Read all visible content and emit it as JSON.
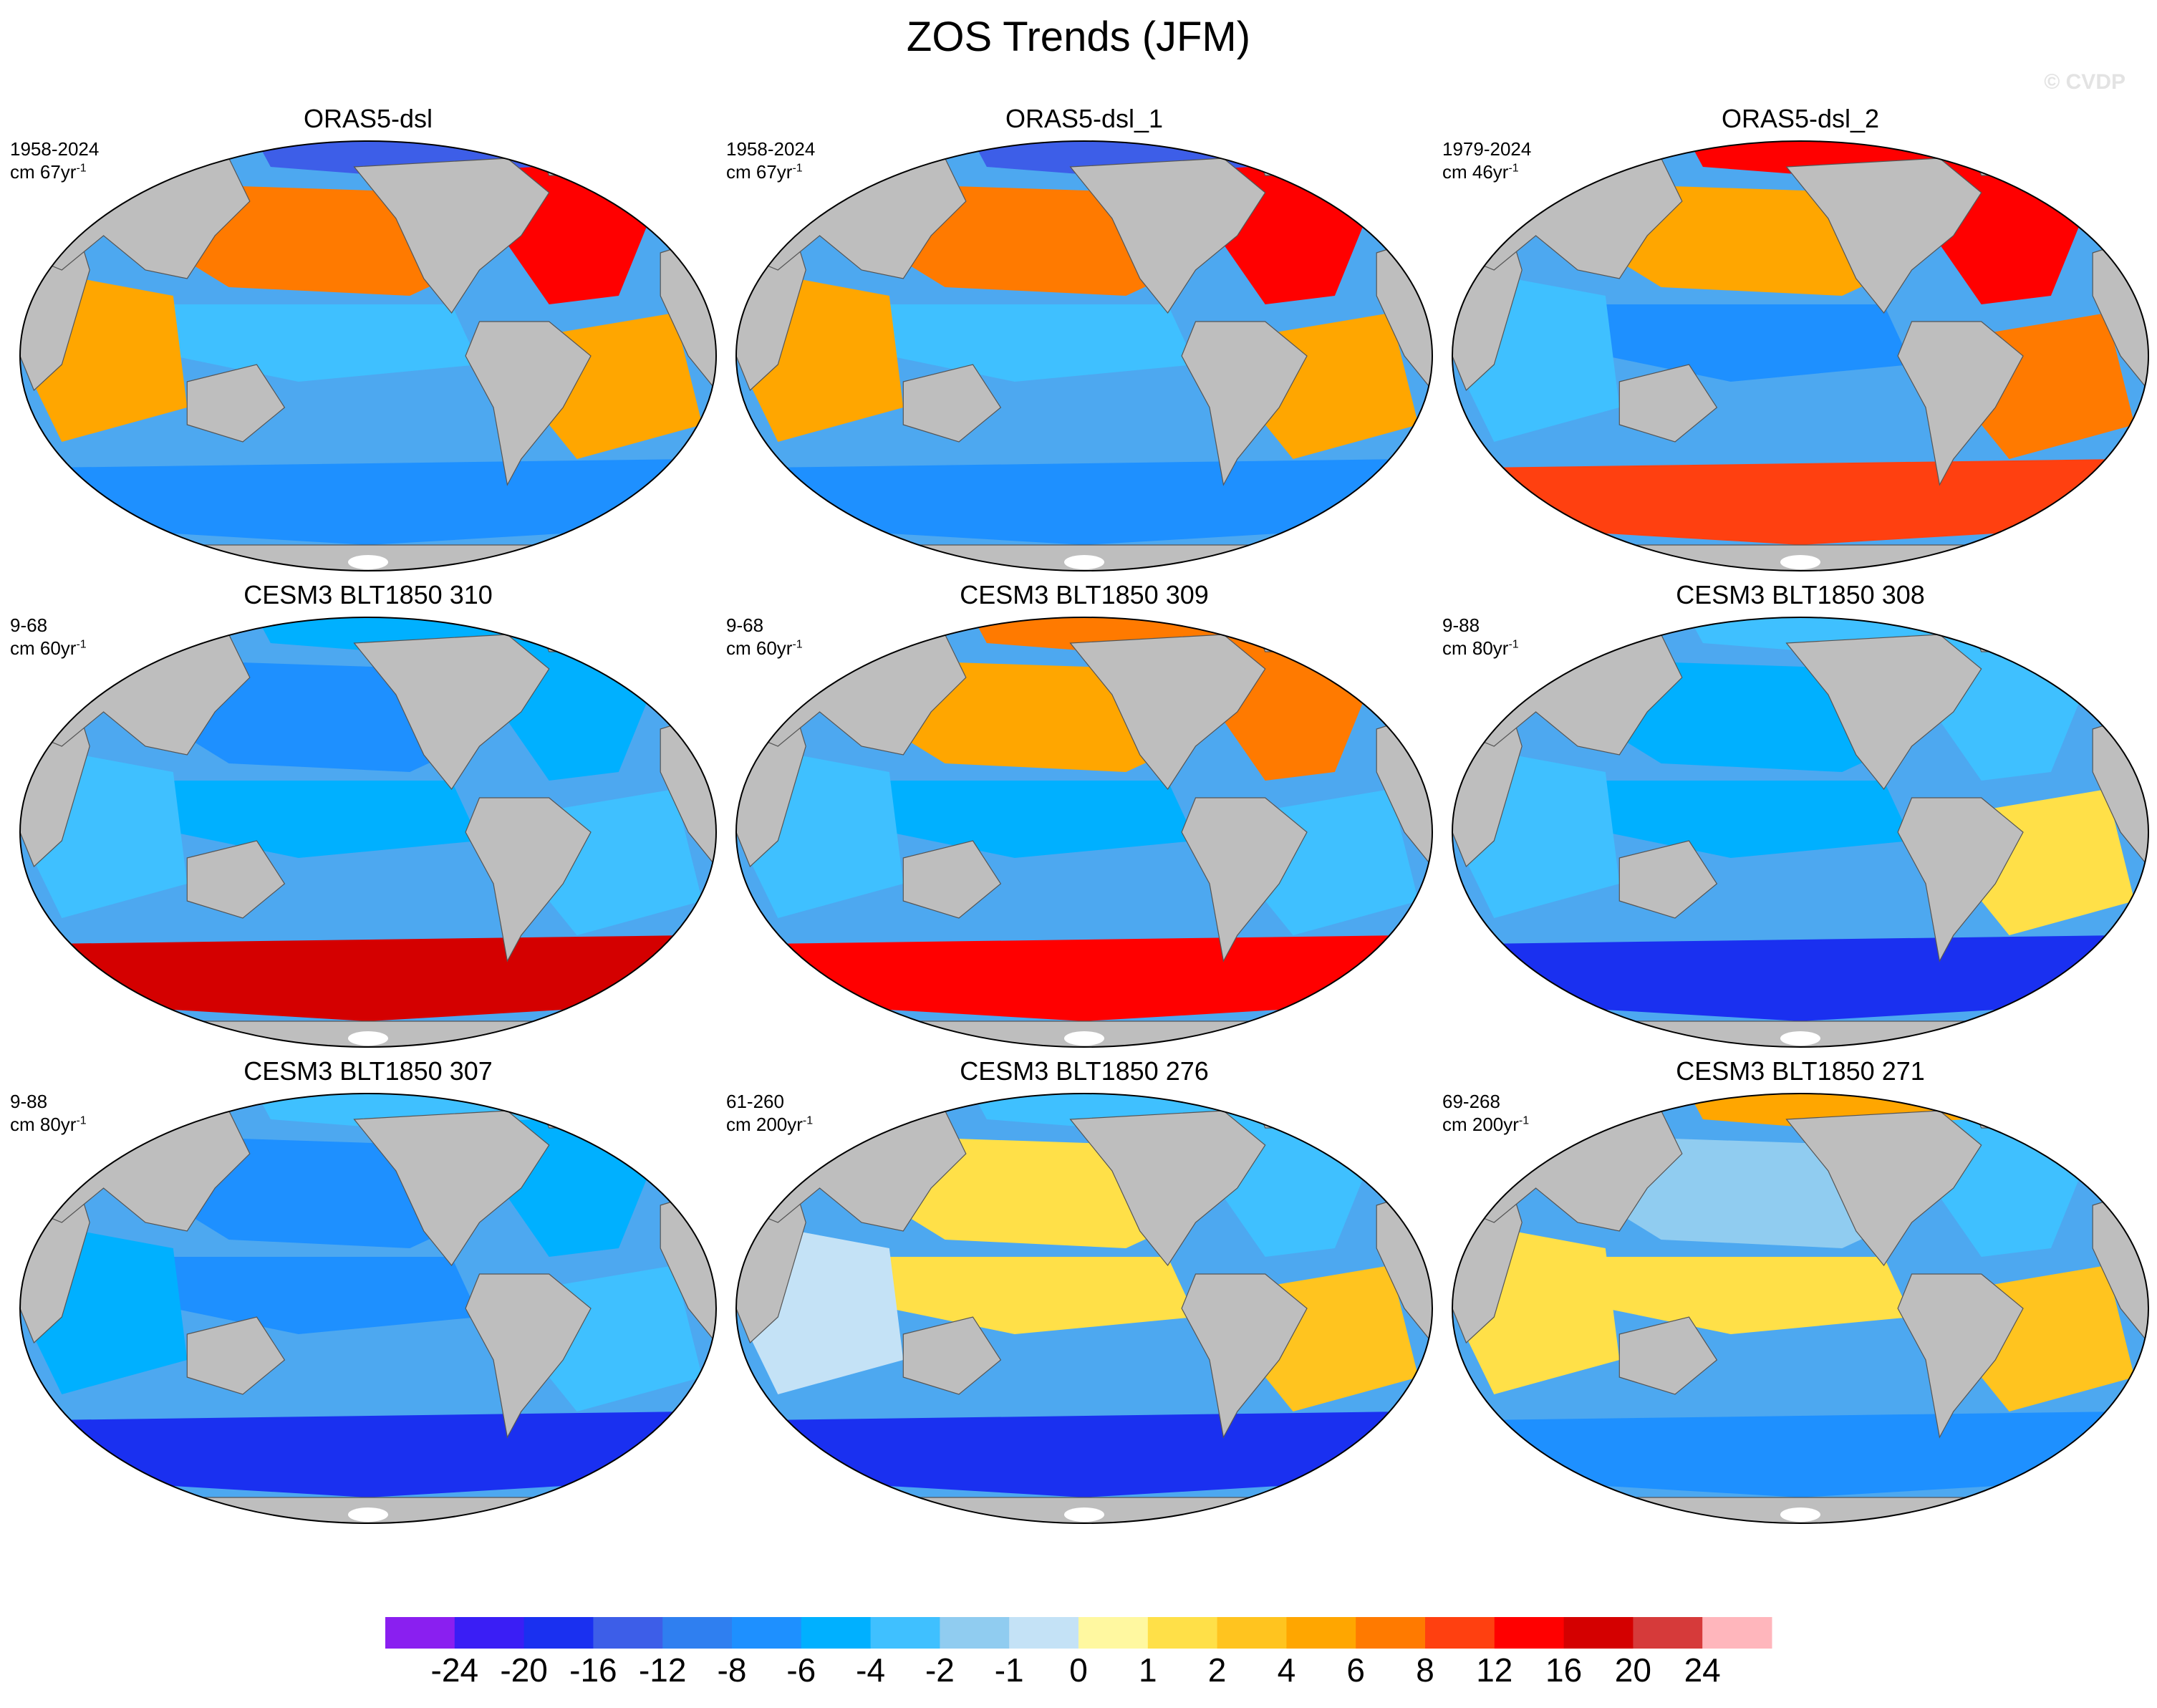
{
  "title": "ZOS Trends (JFM)",
  "watermark": "© CVDP",
  "colors": {
    "ocean_base": "#4da8f0",
    "land": "#bebebe",
    "ice": "#ffffff",
    "coastline": "#555555",
    "colorbar": [
      "#8a1ff0",
      "#3a1ef5",
      "#1a30f0",
      "#3d5ee8",
      "#2f7ff0",
      "#1e90ff",
      "#00b0ff",
      "#3fc0ff",
      "#90ccf0",
      "#c4e2f6",
      "#fff8a0",
      "#ffe048",
      "#ffc41f",
      "#ffa600",
      "#ff7a00",
      "#ff4010",
      "#ff0000",
      "#d40000",
      "#d63a3a",
      "#ffb6bc"
    ]
  },
  "chart_data": {
    "type": "heatmap",
    "projection": "Robinson (global, Pacific-centered)",
    "colorbar": {
      "levels": [
        "-24",
        "-20",
        "-16",
        "-12",
        "-8",
        "-6",
        "-4",
        "-2",
        "-1",
        "0",
        "1",
        "2",
        "4",
        "6",
        "8",
        "12",
        "16",
        "20",
        "24"
      ],
      "n_colors": 20
    },
    "panels": [
      {
        "title": "ORAS5-dsl",
        "period": "1958-2024",
        "units": "cm 67yr",
        "units_sup": "-1",
        "field": [
          {
            "region": "north-atlantic",
            "level": 12
          },
          {
            "region": "north-pacific",
            "level": 6
          },
          {
            "region": "tropical-pacific",
            "level": -4
          },
          {
            "region": "indian-ocean",
            "level": 4
          },
          {
            "region": "south-atlantic",
            "level": 4
          },
          {
            "region": "southern-ocean",
            "level": -8
          },
          {
            "region": "arctic",
            "level": -16
          }
        ]
      },
      {
        "title": "ORAS5-dsl_1",
        "period": "1958-2024",
        "units": "cm 67yr",
        "units_sup": "-1",
        "field": [
          {
            "region": "north-atlantic",
            "level": 12
          },
          {
            "region": "north-pacific",
            "level": 6
          },
          {
            "region": "tropical-pacific",
            "level": -4
          },
          {
            "region": "indian-ocean",
            "level": 4
          },
          {
            "region": "south-atlantic",
            "level": 4
          },
          {
            "region": "southern-ocean",
            "level": -8
          },
          {
            "region": "arctic",
            "level": -16
          }
        ]
      },
      {
        "title": "ORAS5-dsl_2",
        "period": "1979-2024",
        "units": "cm 46yr",
        "units_sup": "-1",
        "field": [
          {
            "region": "north-atlantic",
            "level": 12
          },
          {
            "region": "north-pacific",
            "level": 4
          },
          {
            "region": "tropical-pacific",
            "level": -8
          },
          {
            "region": "indian-ocean",
            "level": -4
          },
          {
            "region": "south-atlantic",
            "level": 6
          },
          {
            "region": "southern-ocean",
            "level": 8
          },
          {
            "region": "arctic",
            "level": 12
          }
        ]
      },
      {
        "title": "CESM3 BLT1850 310",
        "period": "9-68",
        "units": "cm 60yr",
        "units_sup": "-1",
        "field": [
          {
            "region": "north-atlantic",
            "level": -6
          },
          {
            "region": "north-pacific",
            "level": -8
          },
          {
            "region": "tropical-pacific",
            "level": -6
          },
          {
            "region": "indian-ocean",
            "level": -4
          },
          {
            "region": "south-atlantic",
            "level": -4
          },
          {
            "region": "southern-ocean",
            "level": 16
          },
          {
            "region": "arctic",
            "level": -6
          }
        ]
      },
      {
        "title": "CESM3 BLT1850 309",
        "period": "9-68",
        "units": "cm 60yr",
        "units_sup": "-1",
        "field": [
          {
            "region": "north-atlantic",
            "level": 6
          },
          {
            "region": "north-pacific",
            "level": 4
          },
          {
            "region": "tropical-pacific",
            "level": -6
          },
          {
            "region": "indian-ocean",
            "level": -4
          },
          {
            "region": "south-atlantic",
            "level": -4
          },
          {
            "region": "southern-ocean",
            "level": 12
          },
          {
            "region": "arctic",
            "level": 6
          }
        ]
      },
      {
        "title": "CESM3 BLT1850 308",
        "period": "9-88",
        "units": "cm 80yr",
        "units_sup": "-1",
        "field": [
          {
            "region": "north-atlantic",
            "level": -4
          },
          {
            "region": "north-pacific",
            "level": -6
          },
          {
            "region": "tropical-pacific",
            "level": -6
          },
          {
            "region": "indian-ocean",
            "level": -4
          },
          {
            "region": "south-atlantic",
            "level": 1
          },
          {
            "region": "southern-ocean",
            "level": -20
          },
          {
            "region": "arctic",
            "level": -4
          }
        ]
      },
      {
        "title": "CESM3 BLT1850 307",
        "period": "9-88",
        "units": "cm 80yr",
        "units_sup": "-1",
        "field": [
          {
            "region": "north-atlantic",
            "level": -6
          },
          {
            "region": "north-pacific",
            "level": -8
          },
          {
            "region": "tropical-pacific",
            "level": -8
          },
          {
            "region": "indian-ocean",
            "level": -6
          },
          {
            "region": "south-atlantic",
            "level": -4
          },
          {
            "region": "southern-ocean",
            "level": -20
          },
          {
            "region": "arctic",
            "level": -4
          }
        ]
      },
      {
        "title": "CESM3 BLT1850 276",
        "period": "61-260",
        "units": "cm 200yr",
        "units_sup": "-1",
        "field": [
          {
            "region": "north-atlantic",
            "level": -4
          },
          {
            "region": "north-pacific",
            "level": 1
          },
          {
            "region": "tropical-pacific",
            "level": 1
          },
          {
            "region": "indian-ocean",
            "level": -1
          },
          {
            "region": "south-atlantic",
            "level": 2
          },
          {
            "region": "southern-ocean",
            "level": -20
          },
          {
            "region": "arctic",
            "level": -4
          }
        ]
      },
      {
        "title": "CESM3 BLT1850 271",
        "period": "69-268",
        "units": "cm 200yr",
        "units_sup": "-1",
        "field": [
          {
            "region": "north-atlantic",
            "level": -4
          },
          {
            "region": "north-pacific",
            "level": -2
          },
          {
            "region": "tropical-pacific",
            "level": 1
          },
          {
            "region": "indian-ocean",
            "level": 1
          },
          {
            "region": "south-atlantic",
            "level": 2
          },
          {
            "region": "southern-ocean",
            "level": -8
          },
          {
            "region": "arctic",
            "level": 4
          }
        ]
      }
    ]
  }
}
